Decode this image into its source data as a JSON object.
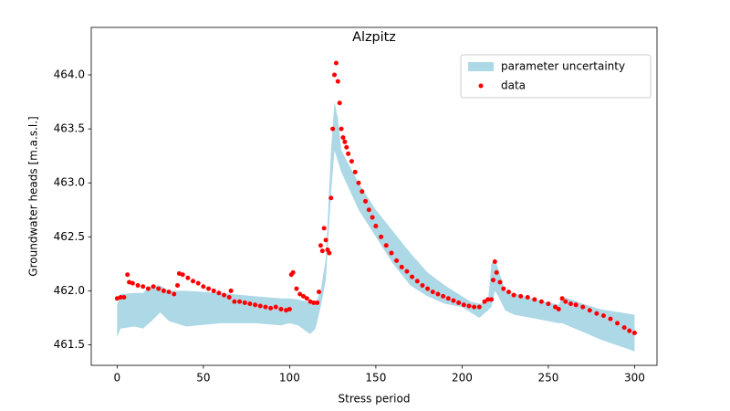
{
  "chart_data": {
    "type": "scatter",
    "title": "Alzpitz",
    "x_label": "Stress period",
    "y_label": "Groundwater heads [m.a.s.l.]",
    "xlim": [
      -15,
      313
    ],
    "ylim": [
      461.31,
      464.44
    ],
    "xticks": [
      0,
      50,
      100,
      150,
      200,
      250,
      300
    ],
    "yticks": [
      {
        "value": 461.5,
        "label": "461.5"
      },
      {
        "value": 462,
        "label": "462.0"
      },
      {
        "value": 462.5,
        "label": "462.5"
      },
      {
        "value": 463,
        "label": "463.0"
      },
      {
        "value": 463.5,
        "label": "463.5"
      },
      {
        "value": 464,
        "label": "464.0"
      }
    ],
    "legend": "upper right",
    "band": {
      "name": "parameter uncertainty",
      "color": "#add8e6",
      "x": [
        0,
        2,
        10,
        15,
        20,
        25,
        30,
        40,
        60,
        80,
        95,
        100,
        105,
        110,
        112,
        115,
        118,
        121,
        124,
        126,
        128,
        130,
        140,
        150,
        160,
        170,
        180,
        190,
        200,
        205,
        210,
        215,
        217,
        219,
        221,
        225,
        230,
        240,
        256,
        258,
        270,
        280,
        300
      ],
      "lower": [
        461.57,
        461.65,
        461.67,
        461.65,
        461.72,
        461.8,
        461.72,
        461.67,
        461.7,
        461.7,
        461.68,
        461.7,
        461.68,
        461.62,
        461.6,
        461.65,
        461.85,
        462.1,
        462.9,
        463.3,
        463.2,
        463.1,
        462.75,
        462.5,
        462.25,
        462.05,
        461.95,
        461.88,
        461.85,
        461.8,
        461.75,
        461.82,
        461.85,
        462.0,
        461.95,
        461.82,
        461.78,
        461.75,
        461.7,
        461.7,
        461.62,
        461.55,
        461.44
      ],
      "upper": [
        461.87,
        461.97,
        461.98,
        461.98,
        462.05,
        462.05,
        462.0,
        462.0,
        461.98,
        461.95,
        461.93,
        461.93,
        461.92,
        461.9,
        461.88,
        461.88,
        462.0,
        462.3,
        463.3,
        463.75,
        463.6,
        463.3,
        463.0,
        462.75,
        462.55,
        462.35,
        462.17,
        462.05,
        461.95,
        461.9,
        461.88,
        461.9,
        462.25,
        462.3,
        462.2,
        462.0,
        461.98,
        461.93,
        461.87,
        461.95,
        461.88,
        461.83,
        461.78
      ]
    },
    "series": [
      {
        "name": "data",
        "color": "#ff0000",
        "x": [
          0,
          2,
          4,
          6,
          7,
          9,
          12,
          15,
          18,
          21,
          24,
          27,
          30,
          33,
          35,
          36,
          38,
          41,
          44,
          47,
          50,
          53,
          56,
          59,
          62,
          65,
          66,
          68,
          71,
          74,
          77,
          80,
          83,
          86,
          89,
          92,
          95,
          98,
          100,
          101,
          102,
          104,
          106,
          108,
          110,
          112,
          114,
          116,
          117,
          118,
          119,
          120,
          121,
          122,
          123,
          124,
          125,
          126,
          127,
          128,
          129,
          130,
          131,
          132,
          133,
          134,
          136,
          138,
          140,
          142,
          144,
          146,
          148,
          150,
          153,
          156,
          159,
          162,
          165,
          168,
          171,
          174,
          177,
          180,
          183,
          186,
          189,
          192,
          195,
          198,
          201,
          204,
          207,
          210,
          213,
          215,
          217,
          218,
          219,
          220,
          222,
          224,
          227,
          230,
          234,
          238,
          242,
          246,
          250,
          254,
          256,
          258,
          260,
          263,
          266,
          270,
          274,
          278,
          282,
          286,
          290,
          294,
          297,
          300
        ],
        "values": [
          461.93,
          461.94,
          461.94,
          462.15,
          462.08,
          462.07,
          462.05,
          462.04,
          462.02,
          462.04,
          462.02,
          462.0,
          461.99,
          461.97,
          462.05,
          462.16,
          462.15,
          462.12,
          462.09,
          462.07,
          462.04,
          462.02,
          462.0,
          461.98,
          461.96,
          461.94,
          462.0,
          461.9,
          461.9,
          461.89,
          461.88,
          461.87,
          461.86,
          461.85,
          461.84,
          461.85,
          461.83,
          461.82,
          461.83,
          462.15,
          462.17,
          462.02,
          461.97,
          461.95,
          461.93,
          461.9,
          461.89,
          461.89,
          461.99,
          462.42,
          462.37,
          462.58,
          462.47,
          462.38,
          462.35,
          462.86,
          463.5,
          464.0,
          464.11,
          463.94,
          463.74,
          463.5,
          463.42,
          463.38,
          463.33,
          463.27,
          463.2,
          463.1,
          463.0,
          462.92,
          462.83,
          462.75,
          462.68,
          462.6,
          462.5,
          462.42,
          462.35,
          462.28,
          462.22,
          462.18,
          462.13,
          462.09,
          462.05,
          462.02,
          461.99,
          461.97,
          461.95,
          461.93,
          461.91,
          461.89,
          461.87,
          461.86,
          461.85,
          461.85,
          461.9,
          461.92,
          461.92,
          462.1,
          462.27,
          462.17,
          462.08,
          462.02,
          461.99,
          461.96,
          461.95,
          461.94,
          461.92,
          461.9,
          461.88,
          461.85,
          461.83,
          461.93,
          461.9,
          461.88,
          461.87,
          461.85,
          461.82,
          461.79,
          461.77,
          461.74,
          461.7,
          461.66,
          461.63,
          461.61
        ]
      }
    ]
  }
}
